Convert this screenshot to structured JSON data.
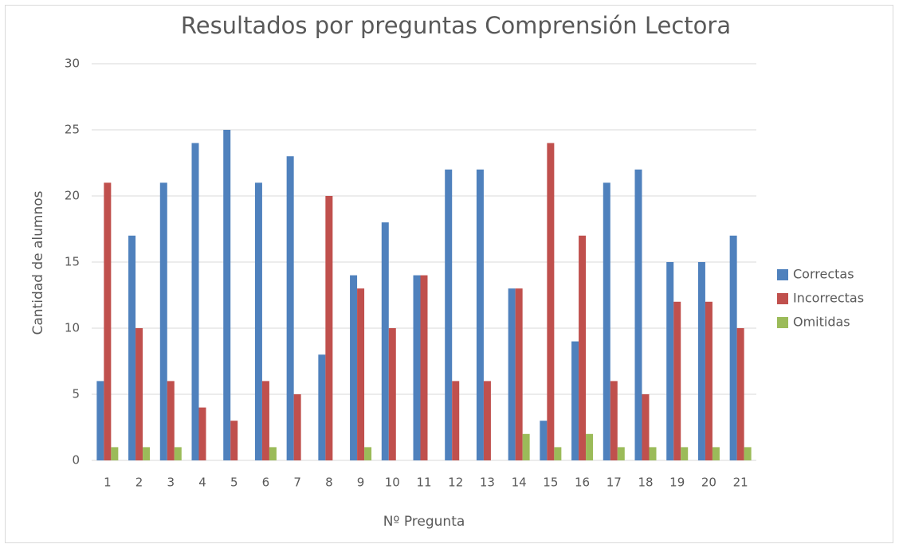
{
  "chart_data": {
    "type": "bar",
    "title": "Resultados por preguntas Comprensión Lectora",
    "x_label": "Nº Pregunta",
    "y_label": "Cantidad de alumnos",
    "categories": [
      "1",
      "2",
      "3",
      "4",
      "5",
      "6",
      "7",
      "8",
      "9",
      "10",
      "11",
      "12",
      "13",
      "14",
      "15",
      "16",
      "17",
      "18",
      "19",
      "20",
      "21"
    ],
    "series": [
      {
        "name": "Correctas",
        "color": "#4f81bd",
        "values": [
          6,
          17,
          21,
          24,
          25,
          21,
          23,
          8,
          14,
          18,
          14,
          22,
          22,
          13,
          3,
          9,
          21,
          22,
          15,
          15,
          17
        ]
      },
      {
        "name": "Incorrectas",
        "color": "#c0504d",
        "values": [
          21,
          10,
          6,
          4,
          3,
          6,
          5,
          20,
          13,
          10,
          14,
          6,
          6,
          13,
          24,
          17,
          6,
          5,
          12,
          12,
          10
        ]
      },
      {
        "name": "Omitidas",
        "color": "#9bbb59",
        "values": [
          1,
          1,
          1,
          0,
          0,
          1,
          0,
          0,
          1,
          0,
          0,
          0,
          0,
          2,
          1,
          2,
          1,
          1,
          1,
          1,
          1
        ]
      }
    ],
    "ylim": [
      0,
      30
    ],
    "yticks": [
      0,
      5,
      10,
      15,
      20,
      25,
      30
    ],
    "grid": true,
    "legend": "right"
  }
}
